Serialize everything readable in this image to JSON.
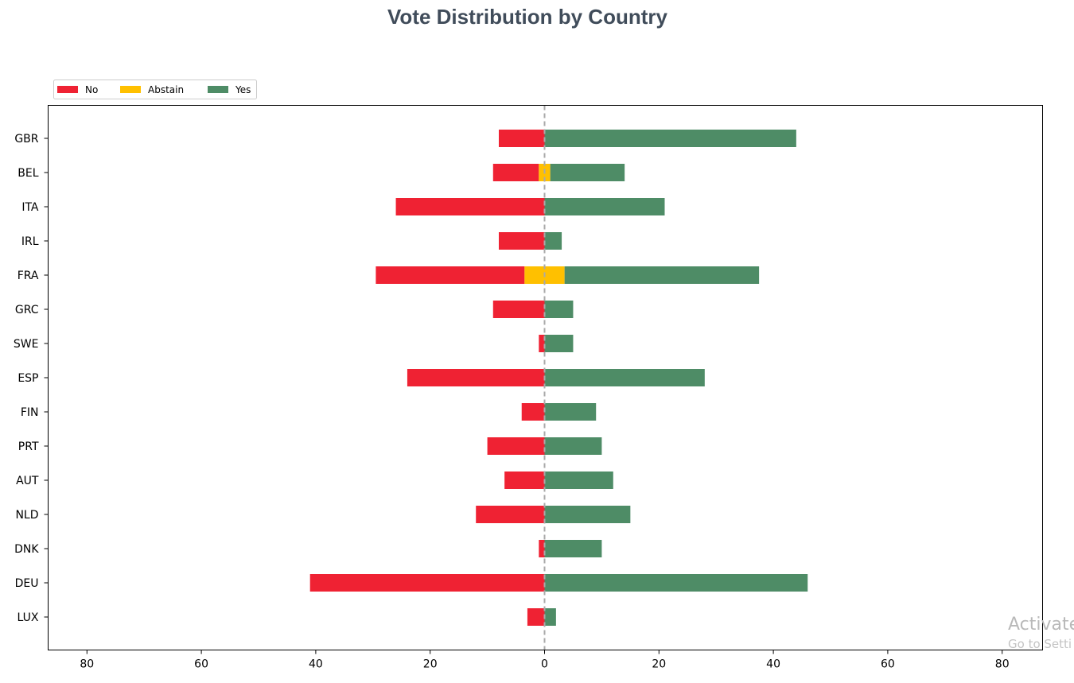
{
  "title": "Vote Distribution by Country",
  "chart_data": {
    "type": "bar",
    "orientation": "horizontal",
    "stacking": "diverging",
    "title": "Vote Distribution by Country",
    "xlabel": "",
    "ylabel": "",
    "xlim": [
      -80,
      80
    ],
    "x_ticks": [
      -80,
      -60,
      -40,
      -20,
      0,
      20,
      40,
      60,
      80
    ],
    "x_tick_labels": [
      "80",
      "60",
      "40",
      "20",
      "0",
      "20",
      "40",
      "60",
      "80"
    ],
    "grid": false,
    "zero_line": "dashed grey",
    "legend_position": "top-left, above plot",
    "categories": [
      "GBR",
      "BEL",
      "ITA",
      "IRL",
      "FRA",
      "GRC",
      "SWE",
      "ESP",
      "FIN",
      "PRT",
      "AUT",
      "NLD",
      "DNK",
      "DEU",
      "LUX"
    ],
    "series": [
      {
        "name": "No",
        "color": "#ef2233",
        "values": [
          8,
          8,
          26,
          8,
          26,
          9,
          1,
          24,
          4,
          10,
          7,
          12,
          1,
          41,
          3
        ]
      },
      {
        "name": "Abstain",
        "color": "#ffc000",
        "values": [
          0,
          2,
          0,
          0,
          7,
          0,
          0,
          0,
          0,
          0,
          0,
          0,
          0,
          0,
          0
        ]
      },
      {
        "name": "Yes",
        "color": "#4e8c66",
        "values": [
          44,
          13,
          21,
          3,
          34,
          5,
          5,
          28,
          9,
          10,
          12,
          15,
          10,
          46,
          2
        ]
      }
    ]
  },
  "watermark": {
    "line1": "Activate",
    "line2": "Go to Setti"
  }
}
